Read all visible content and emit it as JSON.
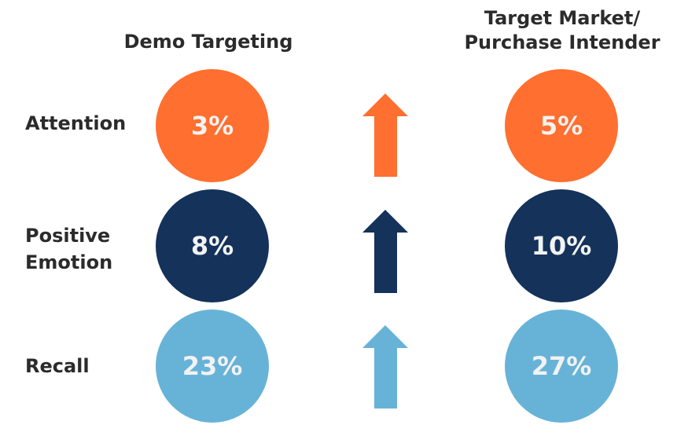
{
  "headers": {
    "left": "Demo Targeting",
    "right_line1": "Target Market/",
    "right_line2": "Purchase Intender"
  },
  "colors": {
    "attention": "#FF6F2F",
    "positive_emotion": "#14325A",
    "recall": "#67B3D8"
  },
  "rows": [
    {
      "label": "Attention",
      "demo": "3%",
      "target": "5%",
      "trend": "up-arrow-icon"
    },
    {
      "label_line1": "Positive",
      "label_line2": "Emotion",
      "demo": "8%",
      "target": "10%",
      "trend": "up-arrow-icon"
    },
    {
      "label": "Recall",
      "demo": "23%",
      "target": "27%",
      "trend": "up-arrow-icon"
    }
  ]
}
